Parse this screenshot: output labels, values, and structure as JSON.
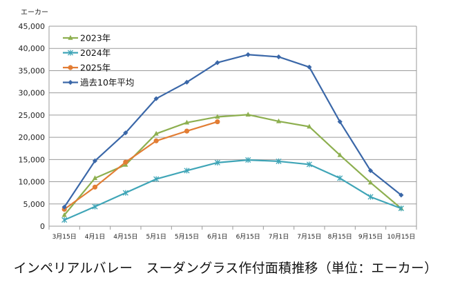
{
  "chart_data": {
    "type": "line",
    "caption": "インペリアルバレー　スーダングラス作付面積推移（単位：エーカー）",
    "unit_label": "エーカー",
    "categories": [
      "3月15日",
      "4月1日",
      "4月15日",
      "5月1日",
      "5月15日",
      "6月1日",
      "6月15日",
      "7月1日",
      "7月15日",
      "8月15日",
      "9月15日",
      "10月15日"
    ],
    "ylim": [
      0,
      45000
    ],
    "yticks": [
      "0",
      "5,000",
      "10,000",
      "15,000",
      "20,000",
      "25,000",
      "30,000",
      "35,000",
      "40,000",
      "45,000"
    ],
    "grid": "horizontal",
    "legend_position": "top-left",
    "series": [
      {
        "name": "2023年",
        "color": "#8DAF4F",
        "marker": "triangle",
        "values": [
          2500,
          10800,
          13800,
          20800,
          23300,
          24600,
          25100,
          23600,
          22400,
          16000,
          9800,
          4000
        ]
      },
      {
        "name": "2024年",
        "color": "#3FA5B7",
        "marker": "star",
        "values": [
          1400,
          4400,
          7500,
          10600,
          12500,
          14300,
          14900,
          14600,
          13900,
          10800,
          6600,
          4000
        ]
      },
      {
        "name": "2025年",
        "color": "#E27D34",
        "marker": "circle",
        "values": [
          3800,
          8800,
          14400,
          19200,
          21400,
          23500,
          null,
          null,
          null,
          null,
          null,
          null
        ]
      },
      {
        "name": "過去10年平均",
        "color": "#3A67A8",
        "marker": "diamond",
        "values": [
          4300,
          14700,
          21000,
          28700,
          32400,
          36800,
          38600,
          38100,
          35800,
          23500,
          12500,
          7000
        ]
      }
    ]
  }
}
